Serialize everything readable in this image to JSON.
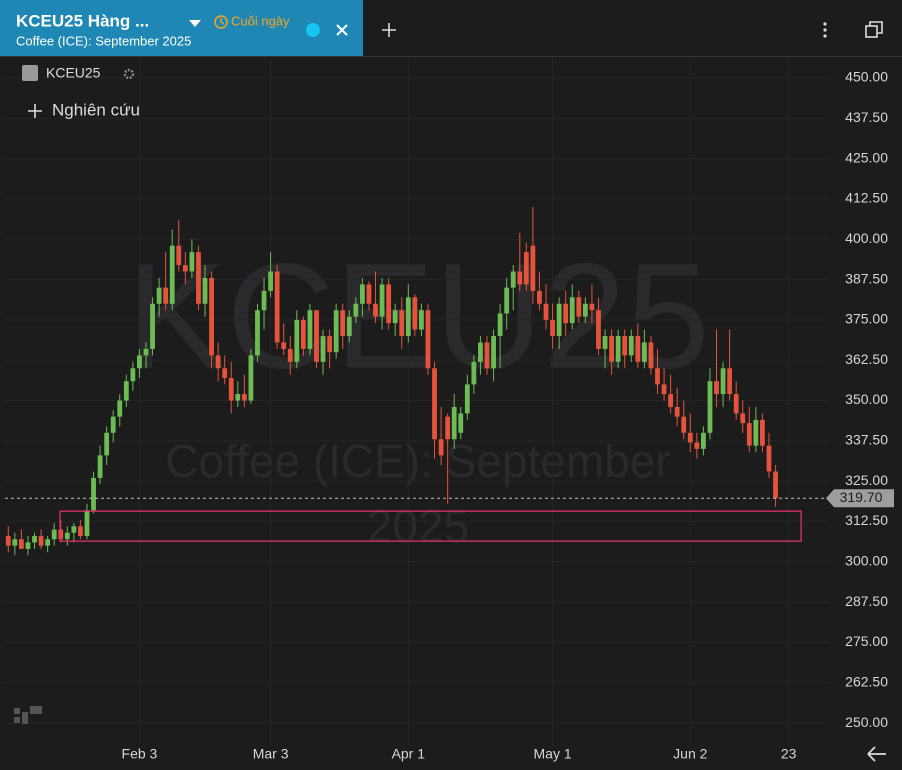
{
  "header": {
    "tab_title": "KCEU25 Hàng ...",
    "interval": "Cuối ngày",
    "tab_subtitle": "Coffee (ICE): September 2025"
  },
  "chart_data": {
    "type": "candlestick",
    "studies_button": "Nghiên cứu",
    "watermark": {
      "symbol": "KCEU25",
      "description": [
        "Coffee (ICE): September",
        "2025"
      ]
    },
    "series": [
      {
        "name": "KCEU25",
        "up_color": "#6dbb55",
        "down_color": "#e5533d",
        "open": [
          308,
          305,
          307,
          304,
          306,
          308,
          305,
          307,
          310,
          307,
          309,
          311,
          308,
          316,
          326,
          333,
          340,
          345,
          350,
          356,
          360,
          364,
          366,
          380,
          385,
          380,
          398,
          392,
          390,
          396,
          380,
          388,
          364,
          360,
          357,
          350,
          352,
          350,
          364,
          378,
          384,
          390,
          368,
          366,
          362,
          375,
          366,
          378,
          362,
          370,
          365,
          378,
          370,
          376,
          380,
          386,
          380,
          376,
          386,
          374,
          378,
          370,
          382,
          372,
          378,
          360,
          338,
          345,
          338,
          340,
          346,
          355,
          362,
          368,
          360,
          370,
          377,
          385,
          390,
          396,
          398,
          384,
          380,
          375,
          370,
          380,
          374,
          382,
          376,
          380,
          378,
          366,
          370,
          362,
          370,
          364,
          370,
          362,
          368,
          360,
          355,
          352,
          348,
          345,
          340,
          337,
          335,
          340,
          356,
          352,
          360,
          352,
          346,
          343,
          336,
          344,
          336,
          328
        ],
        "high": [
          311,
          309,
          310,
          308,
          309,
          310,
          308,
          312,
          313,
          311,
          312,
          313,
          318,
          328,
          336,
          342,
          347,
          352,
          358,
          362,
          366,
          368,
          382,
          388,
          396,
          403,
          406,
          396,
          400,
          398,
          392,
          390,
          368,
          364,
          362,
          356,
          358,
          366,
          380,
          388,
          396,
          392,
          374,
          370,
          378,
          376,
          380,
          378,
          372,
          372,
          380,
          380,
          378,
          382,
          388,
          387,
          390,
          388,
          388,
          380,
          382,
          386,
          383,
          380,
          380,
          362,
          348,
          346,
          352,
          348,
          358,
          364,
          370,
          370,
          372,
          380,
          388,
          392,
          402,
          399,
          410,
          390,
          386,
          380,
          382,
          384,
          386,
          384,
          382,
          386,
          382,
          372,
          372,
          372,
          372,
          372,
          374,
          372,
          370,
          366,
          360,
          358,
          354,
          350,
          346,
          340,
          342,
          360,
          372,
          362,
          372,
          356,
          350,
          348,
          348,
          346,
          340,
          330
        ],
        "low": [
          303,
          302,
          304,
          302,
          304,
          304,
          303,
          305,
          306,
          305,
          306,
          307,
          307,
          315,
          324,
          330,
          337,
          342,
          348,
          353,
          357,
          360,
          364,
          376,
          378,
          378,
          390,
          386,
          388,
          378,
          376,
          360,
          356,
          355,
          346,
          348,
          348,
          349,
          362,
          372,
          382,
          366,
          364,
          358,
          360,
          364,
          364,
          360,
          358,
          360,
          363,
          366,
          368,
          374,
          376,
          378,
          374,
          372,
          372,
          370,
          366,
          368,
          370,
          370,
          358,
          332,
          330,
          318,
          335,
          338,
          344,
          352,
          358,
          358,
          356,
          360,
          372,
          378,
          384,
          384,
          380,
          378,
          372,
          366,
          366,
          370,
          372,
          374,
          374,
          374,
          364,
          360,
          358,
          360,
          360,
          362,
          360,
          360,
          358,
          352,
          350,
          346,
          342,
          338,
          334,
          332,
          333,
          338,
          348,
          348,
          350,
          344,
          340,
          334,
          334,
          334,
          326,
          317
        ],
        "close": [
          305,
          307,
          304,
          306,
          308,
          305,
          307,
          310,
          307,
          309,
          311,
          308,
          316,
          326,
          333,
          340,
          345,
          350,
          356,
          360,
          364,
          366,
          380,
          385,
          380,
          398,
          392,
          390,
          396,
          380,
          388,
          364,
          360,
          357,
          350,
          352,
          350,
          364,
          378,
          384,
          390,
          368,
          366,
          362,
          375,
          366,
          378,
          362,
          370,
          365,
          378,
          370,
          376,
          380,
          386,
          380,
          376,
          386,
          374,
          378,
          370,
          382,
          372,
          378,
          360,
          338,
          333,
          338,
          348,
          346,
          355,
          362,
          368,
          360,
          370,
          377,
          385,
          390,
          386,
          386,
          384,
          380,
          375,
          370,
          380,
          374,
          382,
          376,
          380,
          378,
          366,
          370,
          362,
          370,
          364,
          370,
          362,
          368,
          360,
          355,
          352,
          348,
          345,
          340,
          337,
          335,
          340,
          356,
          352,
          360,
          352,
          346,
          343,
          336,
          344,
          336,
          328,
          319.7
        ]
      }
    ],
    "last_price": {
      "value": 319.7,
      "label": "319.70"
    },
    "zone": {
      "xlim": [
        7.9,
        120.9
      ],
      "ylim": [
        306.4,
        315.7
      ],
      "color": "#e0306a"
    },
    "xlim": [
      -0.5,
      125
    ],
    "xticks": [
      {
        "value": 20,
        "label": "Feb 3"
      },
      {
        "value": 40,
        "label": "Mar 3"
      },
      {
        "value": 61,
        "label": "Apr 1"
      },
      {
        "value": 83,
        "label": "May 1"
      },
      {
        "value": 104,
        "label": "Jun 2"
      },
      {
        "value": 119,
        "label": "23"
      }
    ],
    "ylim": [
      243.2,
      456.2
    ],
    "yticks": [
      {
        "value": 250,
        "label": "250.00"
      },
      {
        "value": 262.5,
        "label": "262.50"
      },
      {
        "value": 275,
        "label": "275.00"
      },
      {
        "value": 287.5,
        "label": "287.50"
      },
      {
        "value": 300,
        "label": "300.00"
      },
      {
        "value": 312.5,
        "label": "312.50"
      },
      {
        "value": 325,
        "label": "325.00"
      },
      {
        "value": 337.5,
        "label": "337.50"
      },
      {
        "value": 350,
        "label": "350.00"
      },
      {
        "value": 362.5,
        "label": "362.50"
      },
      {
        "value": 375,
        "label": "375.00"
      },
      {
        "value": 387.5,
        "label": "387.50"
      },
      {
        "value": 400,
        "label": "400.00"
      },
      {
        "value": 412.5,
        "label": "412.50"
      },
      {
        "value": 425,
        "label": "425.00"
      },
      {
        "value": 437.5,
        "label": "437.50"
      },
      {
        "value": 450,
        "label": "450.00"
      }
    ],
    "grid": true
  }
}
